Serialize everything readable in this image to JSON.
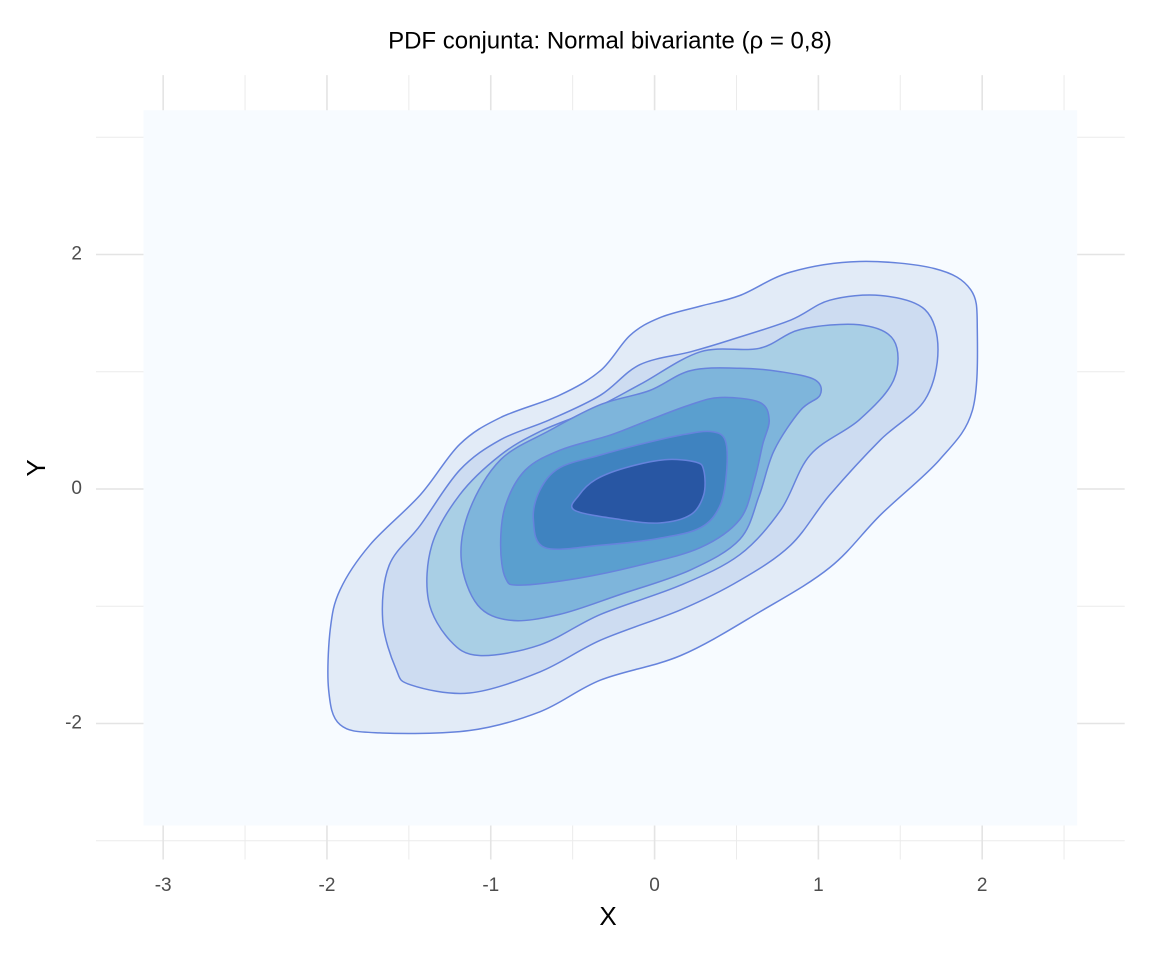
{
  "chart_data": {
    "type": "contour",
    "title": "PDF conjunta: Normal bivariante (ρ = 0,8)",
    "xlabel": "X",
    "ylabel": "Y",
    "xlim": [
      -3.41,
      2.87
    ],
    "ylim": [
      -3.16,
      3.53
    ],
    "xticks": [
      -3,
      -2,
      -1,
      0,
      1,
      2
    ],
    "yticks": [
      -2,
      0,
      2
    ],
    "xminor": [
      -2.5,
      -1.5,
      -0.5,
      0.5,
      1.5,
      2.5
    ],
    "yminor": [
      -3,
      -1,
      1,
      3
    ],
    "grid": true,
    "line_color": "#6683dc",
    "series": [
      {
        "color": "#f7fbff",
        "x": [
          -3.12,
          2.58,
          2.58,
          -3.12
        ],
        "y": [
          3.23,
          3.23,
          -2.87,
          -2.87
        ]
      },
      {
        "color": "#e2ebf7",
        "x": [
          -1.99,
          -1.92,
          -1.68,
          -1.13,
          -0.7,
          -0.33,
          0.16,
          0.64,
          1.07,
          1.38,
          1.74,
          1.94,
          1.97,
          1.93,
          1.71,
          1.25,
          0.83,
          0.52,
          0.28,
          0.03,
          -0.15,
          -0.33,
          -0.58,
          -0.94,
          -1.19,
          -1.43,
          -1.74,
          -1.92,
          -1.98
        ],
        "y": [
          -1.71,
          -2.01,
          -2.08,
          -2.06,
          -1.9,
          -1.63,
          -1.42,
          -1.05,
          -0.67,
          -0.22,
          0.25,
          0.67,
          1.36,
          1.7,
          1.88,
          1.94,
          1.85,
          1.65,
          1.56,
          1.46,
          1.31,
          1.01,
          0.8,
          0.61,
          0.38,
          -0.05,
          -0.48,
          -0.86,
          -1.2
        ]
      },
      {
        "color": "#cddcf1",
        "x": [
          -1.49,
          -1.13,
          -0.7,
          -0.33,
          0.16,
          0.52,
          0.83,
          1.07,
          1.38,
          1.65,
          1.73,
          1.65,
          1.38,
          1.07,
          0.83,
          0.46,
          0.22,
          -0.09,
          -0.33,
          -0.64,
          -0.94,
          -1.19,
          -1.43,
          -1.62,
          -1.66,
          -1.58
        ],
        "y": [
          -1.67,
          -1.74,
          -1.56,
          -1.29,
          -1.03,
          -0.78,
          -0.48,
          -0.05,
          0.42,
          0.76,
          1.19,
          1.53,
          1.65,
          1.61,
          1.44,
          1.27,
          1.17,
          1.06,
          0.8,
          0.59,
          0.42,
          0.16,
          -0.31,
          -0.65,
          -1.12,
          -1.53
        ]
      },
      {
        "color": "#a9cfe5",
        "x": [
          -1.07,
          -0.7,
          -0.33,
          0.16,
          0.52,
          0.77,
          0.95,
          1.25,
          1.46,
          1.46,
          1.25,
          0.89,
          0.64,
          0.28,
          -0.09,
          -0.39,
          -0.7,
          -0.94,
          -1.19,
          -1.36,
          -1.38,
          -1.25
        ],
        "y": [
          -1.42,
          -1.33,
          -1.07,
          -0.82,
          -0.56,
          -0.18,
          0.29,
          0.59,
          0.93,
          1.27,
          1.4,
          1.36,
          1.2,
          1.17,
          0.89,
          0.67,
          0.49,
          0.29,
          -0.05,
          -0.48,
          -0.95,
          -1.29
        ]
      },
      {
        "color": "#7eb5db",
        "x": [
          -0.88,
          -0.58,
          -0.21,
          0.22,
          0.52,
          0.64,
          0.73,
          0.89,
          1.01,
          0.98,
          0.77,
          0.52,
          0.22,
          -0.03,
          -0.33,
          -0.64,
          -0.94,
          -1.13,
          -1.18,
          -1.08
        ],
        "y": [
          -1.12,
          -1.07,
          -0.9,
          -0.69,
          -0.43,
          -0.05,
          0.33,
          0.67,
          0.8,
          0.93,
          1.0,
          1.03,
          1.01,
          0.84,
          0.72,
          0.5,
          0.25,
          -0.18,
          -0.61,
          -0.99
        ]
      },
      {
        "color": "#5a9fcf",
        "x": [
          -0.82,
          -0.46,
          -0.09,
          0.28,
          0.52,
          0.61,
          0.66,
          0.7,
          0.64,
          0.4,
          0.22,
          -0.03,
          -0.27,
          -0.58,
          -0.79,
          -0.91,
          -0.94,
          -0.91
        ],
        "y": [
          -0.82,
          -0.76,
          -0.65,
          -0.5,
          -0.26,
          0.08,
          0.38,
          0.59,
          0.74,
          0.78,
          0.72,
          0.59,
          0.46,
          0.33,
          0.16,
          -0.14,
          -0.48,
          -0.76
        ]
      },
      {
        "color": "#3f83c0",
        "x": [
          -0.67,
          -0.33,
          0.03,
          0.28,
          0.4,
          0.44,
          0.43,
          0.34,
          0.16,
          -0.09,
          -0.33,
          -0.58,
          -0.7,
          -0.74
        ],
        "y": [
          -0.5,
          -0.48,
          -0.42,
          -0.33,
          -0.14,
          0.16,
          0.42,
          0.49,
          0.46,
          0.38,
          0.29,
          0.18,
          -0.01,
          -0.26
        ]
      },
      {
        "color": "#2856a3",
        "x": [
          -0.49,
          -0.21,
          0.03,
          0.22,
          0.3,
          0.3,
          0.25,
          0.06,
          -0.18,
          -0.36,
          -0.46
        ],
        "y": [
          -0.18,
          -0.26,
          -0.29,
          -0.22,
          -0.05,
          0.16,
          0.23,
          0.25,
          0.18,
          0.08,
          -0.05
        ]
      }
    ]
  }
}
